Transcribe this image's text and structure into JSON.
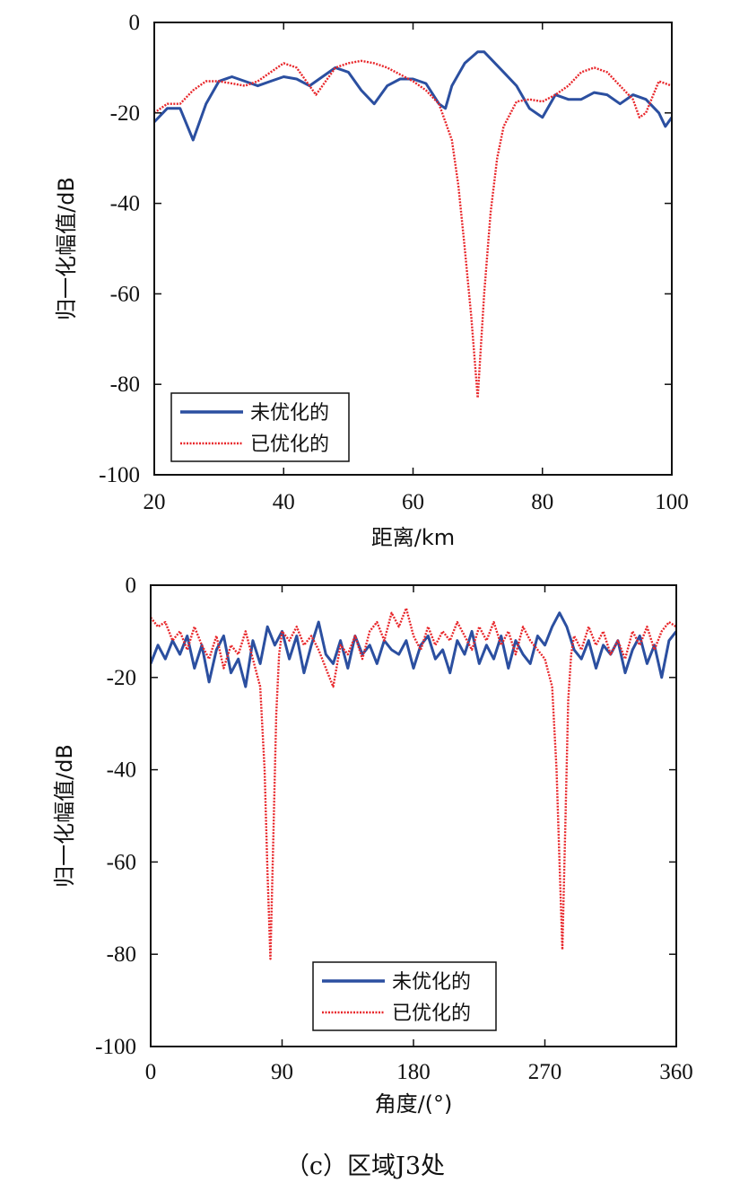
{
  "caption": "（c）区域J3处",
  "colors": {
    "unoptimized": "#2b4fa0",
    "optimized": "#e8262a"
  },
  "chart_data": [
    {
      "type": "line",
      "xlabel": "距离/km",
      "ylabel": "归一化幅值/dB",
      "xlim": [
        20,
        100
      ],
      "ylim": [
        -100,
        0
      ],
      "xticks": [
        "20",
        "40",
        "60",
        "80",
        "100"
      ],
      "yticks": [
        "0",
        "-20",
        "-40",
        "-60",
        "-80",
        "-100"
      ],
      "legend_position": "bottom-left",
      "grid": false,
      "series": [
        {
          "name": "未优化的",
          "style": "solid",
          "x": [
            20,
            22,
            24,
            26,
            28,
            30,
            32,
            34,
            36,
            38,
            40,
            42,
            44,
            46,
            48,
            50,
            52,
            54,
            56,
            58,
            60,
            62,
            64,
            65,
            66,
            68,
            70,
            71,
            72,
            74,
            76,
            78,
            80,
            82,
            84,
            86,
            88,
            90,
            92,
            94,
            96,
            98,
            99,
            100
          ],
          "y": [
            -22,
            -19,
            -19,
            -26,
            -18,
            -13,
            -12,
            -13,
            -14,
            -13,
            -12,
            -12.5,
            -14,
            -12,
            -10,
            -11,
            -15,
            -18,
            -14,
            -12.5,
            -12.5,
            -13.5,
            -18,
            -19,
            -14,
            -9,
            -6.5,
            -6.5,
            -8,
            -11,
            -14,
            -19,
            -21,
            -16,
            -17,
            -17,
            -15.5,
            -16,
            -18,
            -16,
            -17,
            -20,
            -23,
            -21
          ]
        },
        {
          "name": "已优化的",
          "style": "dotted",
          "x": [
            20,
            22,
            24,
            26,
            28,
            30,
            32,
            34,
            36,
            38,
            40,
            42,
            44,
            45,
            46,
            48,
            50,
            52,
            54,
            56,
            58,
            60,
            62,
            64,
            66,
            67,
            68,
            69,
            70,
            71,
            72,
            73,
            74,
            76,
            78,
            80,
            82,
            84,
            86,
            88,
            90,
            92,
            94,
            95,
            96,
            98,
            100
          ],
          "y": [
            -20,
            -18,
            -18,
            -15,
            -13,
            -13,
            -13.5,
            -14,
            -13,
            -11,
            -9,
            -10,
            -14,
            -16,
            -14,
            -10,
            -9,
            -8.5,
            -9,
            -10,
            -11.5,
            -13,
            -15,
            -18,
            -26,
            -36,
            -50,
            -65,
            -83,
            -60,
            -42,
            -30,
            -23,
            -17.5,
            -17,
            -17.5,
            -16,
            -14,
            -11,
            -10,
            -11,
            -14,
            -17,
            -21,
            -20,
            -13,
            -14
          ]
        }
      ]
    },
    {
      "type": "line",
      "xlabel": "角度/(°)",
      "ylabel": "归一化幅值/dB",
      "xlim": [
        0,
        360
      ],
      "ylim": [
        -100,
        0
      ],
      "xticks": [
        "0",
        "90",
        "180",
        "270",
        "360"
      ],
      "yticks": [
        "0",
        "-20",
        "-40",
        "-60",
        "-80",
        "-100"
      ],
      "legend_position": "bottom-right",
      "grid": false,
      "series": [
        {
          "name": "未优化的",
          "style": "solid",
          "x": [
            0,
            5,
            10,
            15,
            20,
            25,
            30,
            35,
            40,
            45,
            50,
            55,
            60,
            65,
            70,
            75,
            80,
            85,
            90,
            95,
            100,
            105,
            110,
            115,
            120,
            125,
            130,
            135,
            140,
            145,
            150,
            155,
            160,
            165,
            170,
            175,
            180,
            185,
            190,
            195,
            200,
            205,
            210,
            215,
            220,
            225,
            230,
            235,
            240,
            245,
            250,
            255,
            260,
            265,
            270,
            275,
            280,
            285,
            290,
            295,
            300,
            305,
            310,
            315,
            320,
            325,
            330,
            335,
            340,
            345,
            350,
            355,
            360
          ],
          "y": [
            -17,
            -13,
            -16,
            -12,
            -15,
            -11,
            -18,
            -13,
            -21,
            -14,
            -11,
            -19,
            -16,
            -22,
            -12,
            -17,
            -9,
            -13,
            -10,
            -16,
            -11,
            -19,
            -13,
            -8,
            -15,
            -17,
            -12,
            -18,
            -11,
            -15,
            -13,
            -17,
            -12,
            -14,
            -15,
            -12,
            -18,
            -13,
            -11,
            -16,
            -14,
            -19,
            -12,
            -15,
            -10,
            -17,
            -13,
            -16,
            -11,
            -18,
            -12,
            -15,
            -17,
            -11,
            -13,
            -9,
            -6,
            -9,
            -14,
            -16,
            -12,
            -18,
            -13,
            -15,
            -12,
            -19,
            -14,
            -11,
            -17,
            -13,
            -20,
            -12,
            -10
          ]
        },
        {
          "name": "已优化的",
          "style": "dotted",
          "x": [
            0,
            5,
            10,
            15,
            20,
            25,
            30,
            35,
            40,
            45,
            50,
            55,
            60,
            65,
            70,
            75,
            78,
            80,
            82,
            84,
            86,
            88,
            90,
            95,
            100,
            105,
            110,
            115,
            120,
            125,
            130,
            135,
            140,
            145,
            150,
            155,
            160,
            165,
            170,
            175,
            180,
            185,
            190,
            195,
            200,
            205,
            210,
            215,
            220,
            225,
            230,
            235,
            240,
            245,
            250,
            255,
            260,
            265,
            270,
            275,
            278,
            280,
            282,
            284,
            286,
            288,
            290,
            295,
            300,
            305,
            310,
            315,
            320,
            325,
            330,
            335,
            340,
            345,
            350,
            355,
            360
          ],
          "y": [
            -7,
            -9,
            -8,
            -12,
            -10,
            -14,
            -9,
            -13,
            -16,
            -11,
            -18,
            -13,
            -15,
            -10,
            -16,
            -22,
            -40,
            -62,
            -81,
            -55,
            -28,
            -15,
            -10,
            -12,
            -9,
            -13,
            -11,
            -14,
            -18,
            -22,
            -13,
            -15,
            -11,
            -16,
            -10,
            -8,
            -12,
            -6,
            -9,
            -5,
            -11,
            -14,
            -9,
            -13,
            -10,
            -12,
            -8,
            -11,
            -14,
            -9,
            -12,
            -8,
            -13,
            -10,
            -15,
            -9,
            -12,
            -14,
            -16,
            -22,
            -40,
            -60,
            -79,
            -52,
            -25,
            -15,
            -11,
            -14,
            -9,
            -13,
            -10,
            -15,
            -12,
            -16,
            -10,
            -13,
            -9,
            -14,
            -10,
            -8,
            -9
          ]
        }
      ]
    }
  ]
}
